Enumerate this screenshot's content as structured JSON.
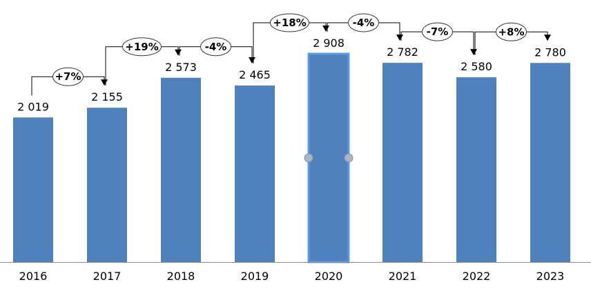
{
  "chart_data": {
    "type": "bar",
    "categories": [
      "2016",
      "2017",
      "2018",
      "2019",
      "2020",
      "2021",
      "2022",
      "2023"
    ],
    "values": [
      2019,
      2155,
      2573,
      2465,
      2908,
      2782,
      2580,
      2780
    ],
    "value_labels": [
      "2 019",
      "2 155",
      "2 573",
      "2 465",
      "2 908",
      "2 782",
      "2 580",
      "2 780"
    ],
    "changes": [
      "+7%",
      "+19%",
      "-4%",
      "+18%",
      "-4%",
      "-7%",
      "+8%"
    ],
    "ylim": [
      0,
      2908
    ],
    "grid": false,
    "selected_category": "2020",
    "colors": {
      "bar": "#4f81bd",
      "selected_border": "#5b9be6",
      "axis": "#888888"
    }
  }
}
